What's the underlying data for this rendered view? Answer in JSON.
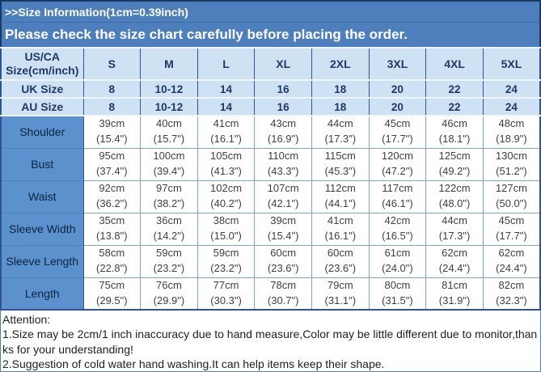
{
  "colors": {
    "bar_blue": "#4d7fbd",
    "navy_border": "#1a3a66",
    "header_light_blue": "#cfe2f4",
    "header_text_navy": "#1f3864",
    "label_cell_blue": "#5b92cd",
    "value_text_gray": "#3f3f3f",
    "body_border_blue": "#7da4d0"
  },
  "header": {
    "title": ">>Size Information(1cm=0.39inch)",
    "subtitle": "Please check the size chart carefully before placing the order."
  },
  "table": {
    "corner": {
      "line1": "US/CA",
      "line2": "Size(cm/inch)"
    },
    "size_columns": [
      "S",
      "M",
      "L",
      "XL",
      "2XL",
      "3XL",
      "4XL",
      "5XL"
    ],
    "uk_row": {
      "label": "UK Size",
      "values": [
        "8",
        "10-12",
        "14",
        "16",
        "18",
        "20",
        "22",
        "24"
      ]
    },
    "au_row": {
      "label": "AU Size",
      "values": [
        "8",
        "10-12",
        "14",
        "16",
        "18",
        "20",
        "22",
        "24"
      ]
    },
    "measurement_rows": [
      {
        "label": "Shoulder",
        "values": [
          {
            "cm": "39cm",
            "inch": "(15.4\")"
          },
          {
            "cm": "40cm",
            "inch": "(15.7\")"
          },
          {
            "cm": "41cm",
            "inch": "(16.1\")"
          },
          {
            "cm": "43cm",
            "inch": "(16.9\")"
          },
          {
            "cm": "44cm",
            "inch": "(17.3\")"
          },
          {
            "cm": "45cm",
            "inch": "(17.7\")"
          },
          {
            "cm": "46cm",
            "inch": "(18.1\")"
          },
          {
            "cm": "48cm",
            "inch": "(18.9\")"
          }
        ]
      },
      {
        "label": "Bust",
        "values": [
          {
            "cm": "95cm",
            "inch": "(37.4\")"
          },
          {
            "cm": "100cm",
            "inch": "(39.4\")"
          },
          {
            "cm": "105cm",
            "inch": "(41.3\")"
          },
          {
            "cm": "110cm",
            "inch": "(43.3\")"
          },
          {
            "cm": "115cm",
            "inch": "(45.3\")"
          },
          {
            "cm": "120cm",
            "inch": "(47.2\")"
          },
          {
            "cm": "125cm",
            "inch": "(49.2\")"
          },
          {
            "cm": "130cm",
            "inch": "(51.2\")"
          }
        ]
      },
      {
        "label": "Waist",
        "values": [
          {
            "cm": "92cm",
            "inch": "(36.2\")"
          },
          {
            "cm": "97cm",
            "inch": "(38.2\")"
          },
          {
            "cm": "102cm",
            "inch": "(40.2\")"
          },
          {
            "cm": "107cm",
            "inch": "(42.1\")"
          },
          {
            "cm": "112cm",
            "inch": "(44.1\")"
          },
          {
            "cm": "117cm",
            "inch": "(46.1\")"
          },
          {
            "cm": "122cm",
            "inch": "(48.0\")"
          },
          {
            "cm": "127cm",
            "inch": "(50.0\")"
          }
        ]
      },
      {
        "label": "Sleeve Width",
        "values": [
          {
            "cm": "35cm",
            "inch": "(13.8\")"
          },
          {
            "cm": "36cm",
            "inch": "(14.2\")"
          },
          {
            "cm": "38cm",
            "inch": "(15.0\")"
          },
          {
            "cm": "39cm",
            "inch": "(15.4\")"
          },
          {
            "cm": "41cm",
            "inch": "(16.1\")"
          },
          {
            "cm": "42cm",
            "inch": "(16.5\")"
          },
          {
            "cm": "44cm",
            "inch": "(17.3\")"
          },
          {
            "cm": "45cm",
            "inch": "(17.7\")"
          }
        ]
      },
      {
        "label": "Sleeve Length",
        "values": [
          {
            "cm": "58cm",
            "inch": "(22.8\")"
          },
          {
            "cm": "59cm",
            "inch": "(23.2\")"
          },
          {
            "cm": "59cm",
            "inch": "(23.2\")"
          },
          {
            "cm": "60cm",
            "inch": "(23.6\")"
          },
          {
            "cm": "60cm",
            "inch": "(23.6\")"
          },
          {
            "cm": "61cm",
            "inch": "(24.0\")"
          },
          {
            "cm": "62cm",
            "inch": "(24.4\")"
          },
          {
            "cm": "62cm",
            "inch": "(24.4\")"
          }
        ]
      },
      {
        "label": "Length",
        "values": [
          {
            "cm": "75cm",
            "inch": "(29.5\")"
          },
          {
            "cm": "76cm",
            "inch": "(29.9\")"
          },
          {
            "cm": "77cm",
            "inch": "(30.3\")"
          },
          {
            "cm": "78cm",
            "inch": "(30.7\")"
          },
          {
            "cm": "79cm",
            "inch": "(31.1\")"
          },
          {
            "cm": "80cm",
            "inch": "(31.5\")"
          },
          {
            "cm": "81cm",
            "inch": "(31.9\")"
          },
          {
            "cm": "82cm",
            "inch": "(32.3\")"
          }
        ]
      }
    ]
  },
  "attention": {
    "title": "Attention:",
    "lines": [
      "1.Size may be 2cm/1 inch inaccuracy due to hand measure,Color may be little different due to monitor,thanks for your understanding!",
      "2.Suggestion of cold water hand washing.It can help items keep their shape."
    ]
  }
}
